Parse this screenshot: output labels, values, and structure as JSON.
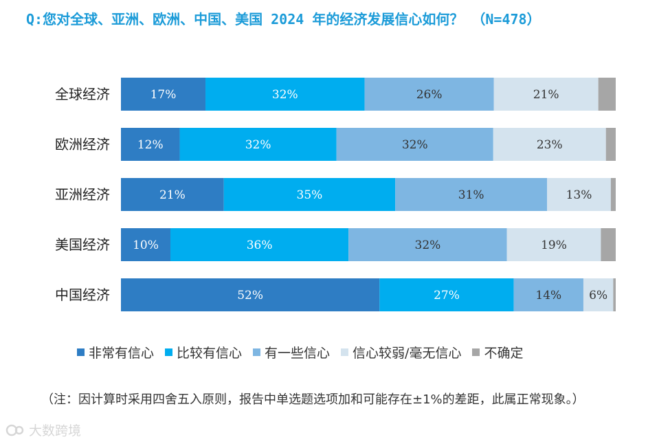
{
  "title": "Q:您对全球、亚洲、欧洲、中国、美国 2024 年的经济发展信心如何？ （N=478）",
  "chart_data": {
    "type": "bar",
    "orientation": "horizontal-stacked-100",
    "title": "Q:您对全球、亚洲、欧洲、中国、美国 2024 年的经济发展信心如何？ （N=478）",
    "categories": [
      "全球经济",
      "欧洲经济",
      "亚洲经济",
      "美国经济",
      "中国经济"
    ],
    "series": [
      {
        "name": "非常有信心",
        "color": "#2e7dc4",
        "label_color": "#ffffff",
        "values": [
          17,
          12,
          21,
          10,
          52
        ]
      },
      {
        "name": "比较有信心",
        "color": "#00adef",
        "label_color": "#ffffff",
        "values": [
          32,
          32,
          35,
          36,
          27
        ]
      },
      {
        "name": "有一些信心",
        "color": "#7eb6e2",
        "label_color": "#333333",
        "values": [
          26,
          32,
          31,
          32,
          14
        ]
      },
      {
        "name": "信心较弱/毫无信心",
        "color": "#d4e3ee",
        "label_color": "#333333",
        "values": [
          21,
          23,
          13,
          19,
          6
        ]
      },
      {
        "name": "不确定",
        "color": "#a6a6a6",
        "label_color": "#333333",
        "values": [
          3.5,
          2,
          1,
          3,
          0.5
        ]
      }
    ],
    "value_suffix": "%",
    "legend_position": "bottom",
    "xlim": [
      0,
      100
    ]
  },
  "note": "（注：因计算时采用四舍五入原则，报告中单选题选项加和可能存在±1%的差距，此属正常现象。）",
  "watermark": "大数跨境"
}
